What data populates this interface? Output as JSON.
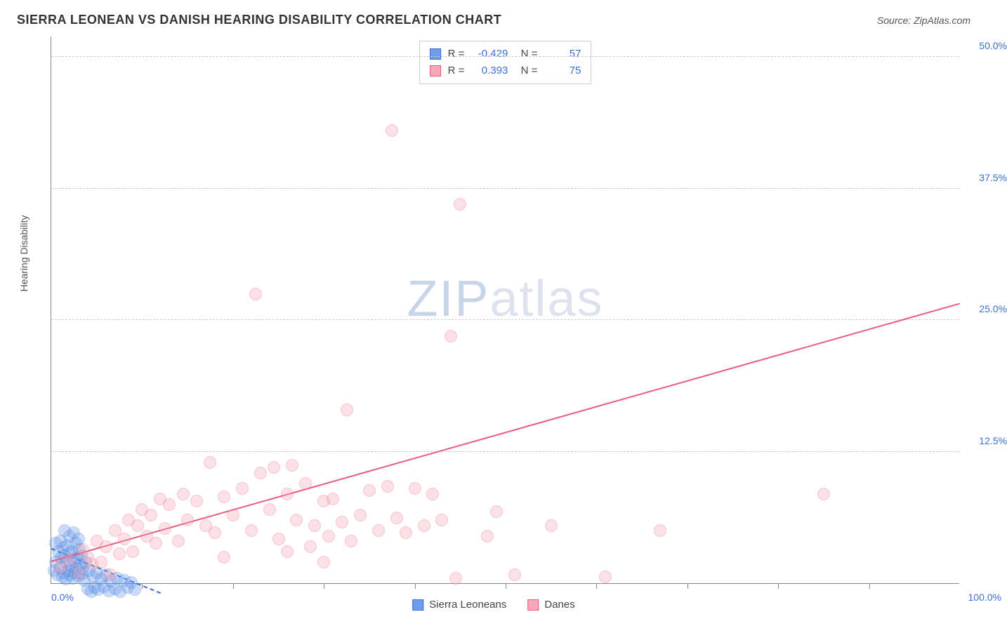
{
  "title": "SIERRA LEONEAN VS DANISH HEARING DISABILITY CORRELATION CHART",
  "source": "Source: ZipAtlas.com",
  "watermark_left": "ZIP",
  "watermark_right": "atlas",
  "chart": {
    "type": "scatter",
    "xlim": [
      0,
      100
    ],
    "ylim": [
      0,
      52
    ],
    "x_min_label": "0.0%",
    "x_max_label": "100.0%",
    "y_ticks": [
      12.5,
      25.0,
      37.5,
      50.0
    ],
    "y_tick_labels": [
      "12.5%",
      "25.0%",
      "37.5%",
      "50.0%"
    ],
    "x_ticks": [
      10,
      20,
      30,
      40,
      50,
      60,
      70,
      80,
      90
    ],
    "grid_color": "#cccccc",
    "axis_color": "#888888",
    "tick_label_color": "#3b6fd6",
    "ylabel": "Hearing Disability",
    "marker_radius": 9,
    "marker_opacity": 0.35,
    "series": [
      {
        "name": "Sierra Leoneans",
        "fill": "#6d9eeb",
        "stroke": "#3b6fd6",
        "r_value": "-0.429",
        "n_value": "57",
        "trend": {
          "x1": 0,
          "y1": 3.2,
          "x2": 12,
          "y2": -1.0,
          "dashed": true
        },
        "points": [
          [
            0.3,
            1.2
          ],
          [
            0.5,
            2.0
          ],
          [
            0.7,
            0.8
          ],
          [
            0.8,
            3.0
          ],
          [
            1.0,
            1.5
          ],
          [
            1.1,
            2.4
          ],
          [
            1.2,
            0.6
          ],
          [
            1.3,
            3.4
          ],
          [
            1.4,
            1.0
          ],
          [
            1.5,
            2.6
          ],
          [
            1.6,
            0.4
          ],
          [
            1.7,
            2.0
          ],
          [
            1.8,
            3.6
          ],
          [
            1.9,
            1.2
          ],
          [
            2.0,
            2.8
          ],
          [
            2.1,
            0.8
          ],
          [
            2.2,
            1.6
          ],
          [
            2.3,
            3.0
          ],
          [
            2.4,
            0.5
          ],
          [
            2.5,
            2.2
          ],
          [
            2.6,
            1.0
          ],
          [
            2.7,
            3.8
          ],
          [
            2.8,
            1.4
          ],
          [
            2.9,
            2.4
          ],
          [
            3.0,
            0.7
          ],
          [
            3.1,
            3.2
          ],
          [
            3.2,
            1.8
          ],
          [
            3.3,
            2.6
          ],
          [
            3.4,
            0.9
          ],
          [
            3.5,
            1.4
          ],
          [
            3.6,
            0.3
          ],
          [
            3.8,
            2.0
          ],
          [
            4.0,
            -0.5
          ],
          [
            4.2,
            1.2
          ],
          [
            4.4,
            -0.8
          ],
          [
            4.6,
            0.6
          ],
          [
            4.8,
            -0.4
          ],
          [
            5.0,
            1.0
          ],
          [
            5.2,
            -0.6
          ],
          [
            5.5,
            0.4
          ],
          [
            5.8,
            -0.3
          ],
          [
            6.0,
            0.8
          ],
          [
            6.3,
            -0.7
          ],
          [
            6.6,
            0.2
          ],
          [
            7.0,
            -0.5
          ],
          [
            7.3,
            0.5
          ],
          [
            7.6,
            -0.8
          ],
          [
            8.0,
            0.3
          ],
          [
            8.4,
            -0.4
          ],
          [
            8.8,
            0.1
          ],
          [
            9.2,
            -0.6
          ],
          [
            2.0,
            4.5
          ],
          [
            2.5,
            4.8
          ],
          [
            3.0,
            4.2
          ],
          [
            1.5,
            5.0
          ],
          [
            1.0,
            4.0
          ],
          [
            0.5,
            3.8
          ]
        ]
      },
      {
        "name": "Danes",
        "fill": "#f6a8b8",
        "stroke": "#e85c7e",
        "r_value": "0.393",
        "n_value": "75",
        "trend": {
          "x1": 0,
          "y1": 2.0,
          "x2": 100,
          "y2": 26.5,
          "dashed": false
        },
        "points": [
          [
            1,
            1.5
          ],
          [
            2,
            2.2
          ],
          [
            3,
            1.0
          ],
          [
            3.5,
            3.2
          ],
          [
            4,
            2.5
          ],
          [
            4.5,
            1.8
          ],
          [
            5,
            4.0
          ],
          [
            5.5,
            2.0
          ],
          [
            6,
            3.5
          ],
          [
            6.5,
            0.8
          ],
          [
            7,
            5.0
          ],
          [
            7.5,
            2.8
          ],
          [
            8,
            4.2
          ],
          [
            8.5,
            6.0
          ],
          [
            9,
            3.0
          ],
          [
            9.5,
            5.5
          ],
          [
            10,
            7.0
          ],
          [
            10.5,
            4.5
          ],
          [
            11,
            6.5
          ],
          [
            11.5,
            3.8
          ],
          [
            12,
            8.0
          ],
          [
            12.5,
            5.2
          ],
          [
            13,
            7.5
          ],
          [
            14,
            4.0
          ],
          [
            14.5,
            8.5
          ],
          [
            15,
            6.0
          ],
          [
            16,
            7.8
          ],
          [
            17,
            5.5
          ],
          [
            17.5,
            11.5
          ],
          [
            18,
            4.8
          ],
          [
            19,
            8.2
          ],
          [
            20,
            6.5
          ],
          [
            21,
            9.0
          ],
          [
            22,
            5.0
          ],
          [
            23,
            10.5
          ],
          [
            24,
            7.0
          ],
          [
            24.5,
            11.0
          ],
          [
            25,
            4.2
          ],
          [
            26,
            8.5
          ],
          [
            26.5,
            11.2
          ],
          [
            27,
            6.0
          ],
          [
            28,
            9.5
          ],
          [
            29,
            5.5
          ],
          [
            30,
            7.8
          ],
          [
            30.5,
            4.5
          ],
          [
            31,
            8.0
          ],
          [
            32,
            5.8
          ],
          [
            32.5,
            16.5
          ],
          [
            33,
            4.0
          ],
          [
            34,
            6.5
          ],
          [
            35,
            8.8
          ],
          [
            36,
            5.0
          ],
          [
            37,
            9.2
          ],
          [
            37.5,
            43.0
          ],
          [
            38,
            6.2
          ],
          [
            39,
            4.8
          ],
          [
            40,
            9.0
          ],
          [
            41,
            5.5
          ],
          [
            42,
            8.5
          ],
          [
            43,
            6.0
          ],
          [
            44,
            23.5
          ],
          [
            44.5,
            0.5
          ],
          [
            45,
            36.0
          ],
          [
            48,
            4.5
          ],
          [
            49,
            6.8
          ],
          [
            51,
            0.8
          ],
          [
            55,
            5.5
          ],
          [
            61,
            0.6
          ],
          [
            67,
            5.0
          ],
          [
            85,
            8.5
          ],
          [
            22.5,
            27.5
          ],
          [
            28.5,
            3.5
          ],
          [
            30,
            2.0
          ],
          [
            26,
            3.0
          ],
          [
            19,
            2.5
          ]
        ]
      }
    ]
  },
  "legend": {
    "items": [
      {
        "label": "Sierra Leoneans",
        "fill": "#6d9eeb",
        "stroke": "#3b6fd6"
      },
      {
        "label": "Danes",
        "fill": "#f6a8b8",
        "stroke": "#e85c7e"
      }
    ]
  }
}
